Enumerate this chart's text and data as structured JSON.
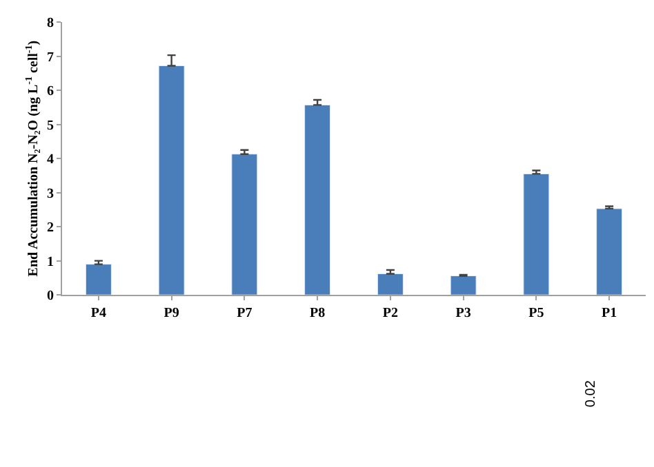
{
  "chart_data": {
    "type": "bar",
    "ylabel": "End Accumulation N₂-N₂O (ng L$^{-1}$ cell$^{-1}$)",
    "categories": [
      "P4",
      "P9",
      "P7",
      "P8",
      "P2",
      "P3",
      "P5",
      "P1"
    ],
    "values": [
      0.9,
      6.72,
      4.13,
      5.57,
      0.62,
      0.56,
      3.55,
      2.53
    ],
    "errors": [
      [
        0.9,
        1.0
      ],
      [
        6.72,
        7.03
      ],
      [
        4.13,
        4.25
      ],
      [
        5.57,
        5.72
      ],
      [
        0.62,
        0.73
      ],
      [
        0.56,
        0.59
      ],
      [
        3.55,
        3.65
      ],
      [
        2.53,
        2.6
      ]
    ],
    "color": "#4a7ebb",
    "ylim": [
      0,
      8
    ],
    "yticks": [
      0,
      1,
      2,
      3,
      4,
      5,
      6,
      7,
      8
    ],
    "annotations": [
      "0.02"
    ]
  }
}
